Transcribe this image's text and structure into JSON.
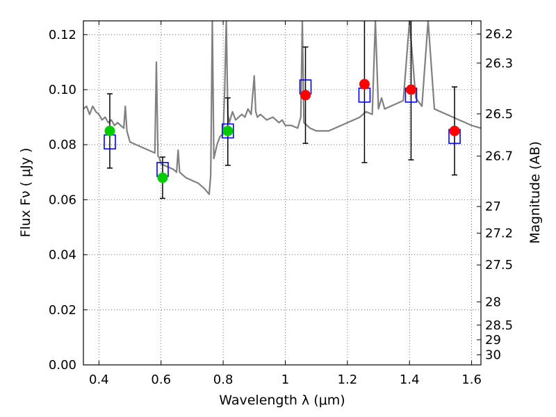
{
  "chart_data": {
    "type": "scatter",
    "title": "",
    "xlabel": "Wavelength  λ (μm)",
    "ylabel": "Flux  Fν  ( μJy )",
    "y2label": "Magnitude (AB)",
    "xlim": [
      0.35,
      1.63
    ],
    "ylim": [
      0.0,
      0.125
    ],
    "grid": true,
    "x_ticks": [
      0.4,
      0.6,
      0.8,
      1.0,
      1.2,
      1.4,
      1.6
    ],
    "x_tick_labels": [
      "0.4",
      "0.6",
      "0.8",
      "1",
      "1.2",
      "1.4",
      "1.6"
    ],
    "y_ticks": [
      0.0,
      0.02,
      0.04,
      0.06,
      0.08,
      0.1,
      0.12
    ],
    "y_tick_labels": [
      "0.00",
      "0.02",
      "0.04",
      "0.06",
      "0.08",
      "0.10",
      "0.12"
    ],
    "mag_ticks": [
      26.2,
      26.3,
      26.5,
      26.7,
      27,
      27.2,
      27.5,
      28,
      28.5,
      29,
      30
    ],
    "mag_tick_labels": [
      "26.2",
      "26.3",
      "26.5",
      "26.7",
      "27",
      "27.2",
      "27.5",
      "28",
      "28.5",
      "29",
      "30"
    ],
    "colors": {
      "template": "#808080",
      "model_box": "#0000ff",
      "optical_obs": "#00cc00",
      "nir_obs": "#ff0000",
      "errorbar": "#000000"
    },
    "series": [
      {
        "name": "template_spectrum",
        "kind": "line",
        "x": [
          0.35,
          0.36,
          0.37,
          0.38,
          0.39,
          0.4,
          0.41,
          0.42,
          0.43,
          0.44,
          0.45,
          0.46,
          0.47,
          0.48,
          0.485,
          0.49,
          0.495,
          0.5,
          0.52,
          0.54,
          0.56,
          0.58,
          0.585,
          0.59,
          0.595,
          0.6,
          0.62,
          0.64,
          0.65,
          0.655,
          0.66,
          0.68,
          0.7,
          0.72,
          0.74,
          0.755,
          0.76,
          0.765,
          0.77,
          0.78,
          0.79,
          0.8,
          0.805,
          0.81,
          0.815,
          0.82,
          0.83,
          0.84,
          0.85,
          0.86,
          0.87,
          0.88,
          0.89,
          0.9,
          0.905,
          0.91,
          0.92,
          0.94,
          0.96,
          0.98,
          0.99,
          1.0,
          1.02,
          1.04,
          1.05,
          1.055,
          1.06,
          1.08,
          1.1,
          1.12,
          1.14,
          1.16,
          1.18,
          1.2,
          1.22,
          1.24,
          1.26,
          1.28,
          1.29,
          1.3,
          1.31,
          1.32,
          1.34,
          1.36,
          1.38,
          1.4,
          1.42,
          1.44,
          1.46,
          1.48,
          1.5,
          1.52,
          1.54,
          1.56,
          1.58,
          1.6,
          1.63
        ],
        "y": [
          0.093,
          0.094,
          0.091,
          0.094,
          0.092,
          0.091,
          0.089,
          0.09,
          0.088,
          0.089,
          0.087,
          0.088,
          0.087,
          0.086,
          0.094,
          0.085,
          0.083,
          0.081,
          0.08,
          0.079,
          0.078,
          0.077,
          0.11,
          0.076,
          0.075,
          0.073,
          0.072,
          0.071,
          0.07,
          0.078,
          0.07,
          0.068,
          0.067,
          0.066,
          0.064,
          0.062,
          0.069,
          0.125,
          0.075,
          0.08,
          0.083,
          0.084,
          0.1,
          0.125,
          0.091,
          0.088,
          0.092,
          0.089,
          0.09,
          0.091,
          0.09,
          0.093,
          0.091,
          0.105,
          0.092,
          0.09,
          0.091,
          0.089,
          0.09,
          0.088,
          0.089,
          0.087,
          0.087,
          0.086,
          0.09,
          0.125,
          0.088,
          0.086,
          0.085,
          0.085,
          0.085,
          0.086,
          0.087,
          0.088,
          0.089,
          0.09,
          0.092,
          0.091,
          0.125,
          0.093,
          0.097,
          0.093,
          0.094,
          0.095,
          0.096,
          0.125,
          0.097,
          0.094,
          0.125,
          0.093,
          0.092,
          0.091,
          0.09,
          0.089,
          0.088,
          0.087,
          0.086
        ]
      },
      {
        "name": "model_photometry",
        "kind": "box",
        "x": [
          0.435,
          0.605,
          0.815,
          1.065,
          1.255,
          1.405,
          1.545
        ],
        "y": [
          0.081,
          0.071,
          0.085,
          0.101,
          0.098,
          0.098,
          0.083
        ]
      },
      {
        "name": "observed_optical",
        "kind": "point",
        "x": [
          0.435,
          0.605,
          0.815
        ],
        "y": [
          0.085,
          0.068,
          0.085
        ],
        "err_low": [
          0.0135,
          0.0075,
          0.0125
        ],
        "err_high": [
          0.0135,
          0.0075,
          0.012
        ]
      },
      {
        "name": "observed_nir",
        "kind": "point",
        "x": [
          1.065,
          1.255,
          1.405,
          1.545
        ],
        "y": [
          0.098,
          0.102,
          0.1,
          0.085
        ],
        "err_low": [
          0.0175,
          0.0285,
          0.0255,
          0.016
        ],
        "err_high": [
          0.0175,
          0.0285,
          0.0255,
          0.016
        ]
      }
    ]
  }
}
